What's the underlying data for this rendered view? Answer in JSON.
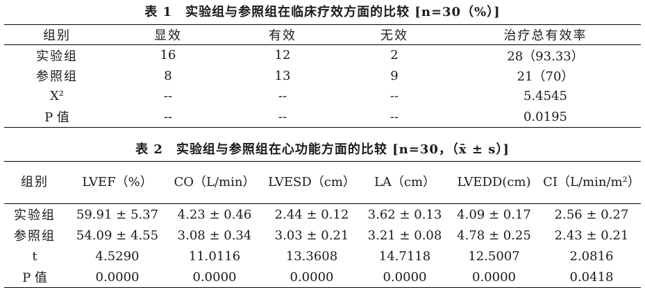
{
  "table1": {
    "caption": "表 1　实验组与参照组在临床疗效方面的比较 [n=30（%）]",
    "headers": [
      "组别",
      "显效",
      "有效",
      "无效",
      "治疗总有效率"
    ],
    "rows": [
      [
        "实验组",
        "16",
        "12",
        "2",
        "28（93.33）"
      ],
      [
        "参照组",
        "8",
        "13",
        "9",
        "21（70）"
      ],
      [
        "X²",
        "--",
        "--",
        "--",
        "5.4545"
      ],
      [
        "P 值",
        "--",
        "--",
        "--",
        "0.0195"
      ]
    ]
  },
  "table2": {
    "caption": "表 2　实验组与参照组在心功能方面的比较 [n=30，（x̄ ± s）]",
    "headers": [
      "组别",
      "LVEF（%）",
      "CO（L/min）",
      "LVESD（cm）",
      "LA（cm）",
      "LVEDD(cm)",
      "CI（L/min/m²）"
    ],
    "rows": [
      [
        "实验组",
        "59.91 ± 5.37",
        "4.23 ± 0.46",
        "2.44 ± 0.12",
        "3.62 ± 0.13",
        "4.09 ± 0.17",
        "2.56 ± 0.27"
      ],
      [
        "参照组",
        "54.09 ± 4.55",
        "3.08 ± 0.34",
        "3.03 ± 0.21",
        "3.21 ± 0.08",
        "4.78 ± 0.25",
        "2.43 ± 0.21"
      ],
      [
        "t",
        "4.5290",
        "11.0116",
        "13.3608",
        "14.7118",
        "12.5007",
        "2.0816"
      ],
      [
        "P 值",
        "0.0000",
        "0.0000",
        "0.0000",
        "0.0000",
        "0.0000",
        "0.0418"
      ]
    ]
  }
}
